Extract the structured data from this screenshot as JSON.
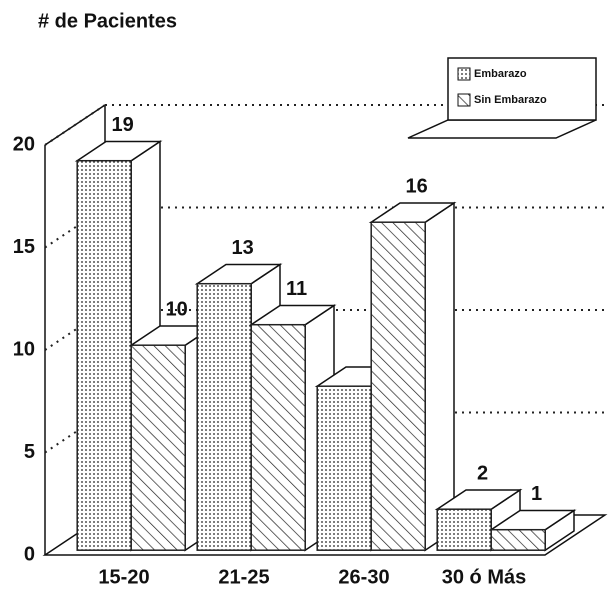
{
  "chart_data": {
    "type": "bar3d",
    "title": "# de Pacientes",
    "categories": [
      "15-20",
      "21-25",
      "26-30",
      "30 ó Más"
    ],
    "series": [
      {
        "name": "Embarazo",
        "pattern": "dots",
        "color": "#222222",
        "values": [
          19,
          13,
          8,
          2
        ],
        "value_labels": [
          19,
          13,
          null,
          2
        ]
      },
      {
        "name": "Sin Embarazo",
        "pattern": "hatch",
        "color": "#222222",
        "values": [
          10,
          11,
          16,
          1
        ],
        "value_labels": [
          10,
          11,
          16,
          1
        ]
      }
    ],
    "ylim": [
      0,
      20
    ],
    "yticks": [
      0,
      5,
      10,
      15,
      20
    ],
    "grid": true,
    "legend": "top-right"
  }
}
